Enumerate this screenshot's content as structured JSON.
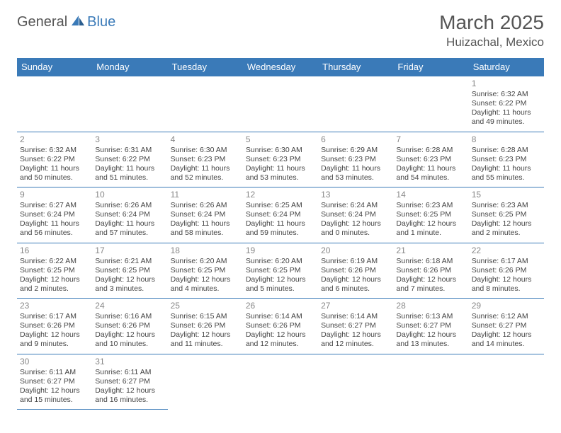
{
  "logo": {
    "general": "General",
    "blue": "Blue"
  },
  "title": {
    "month": "March 2025",
    "location": "Huizachal, Mexico"
  },
  "colors": {
    "brand_blue": "#3a7ab8",
    "text_dark": "#555555",
    "text_body": "#444444",
    "daynum": "#888888",
    "background": "#ffffff"
  },
  "calendar": {
    "columns": [
      "Sunday",
      "Monday",
      "Tuesday",
      "Wednesday",
      "Thursday",
      "Friday",
      "Saturday"
    ],
    "cell_fontsize": 10.5,
    "header_fontsize": 13,
    "border_color": "#3a7ab8",
    "weeks": [
      [
        null,
        null,
        null,
        null,
        null,
        null,
        {
          "n": "1",
          "sr": "Sunrise: 6:32 AM",
          "ss": "Sunset: 6:22 PM",
          "dl1": "Daylight: 11 hours",
          "dl2": "and 49 minutes."
        }
      ],
      [
        {
          "n": "2",
          "sr": "Sunrise: 6:32 AM",
          "ss": "Sunset: 6:22 PM",
          "dl1": "Daylight: 11 hours",
          "dl2": "and 50 minutes."
        },
        {
          "n": "3",
          "sr": "Sunrise: 6:31 AM",
          "ss": "Sunset: 6:22 PM",
          "dl1": "Daylight: 11 hours",
          "dl2": "and 51 minutes."
        },
        {
          "n": "4",
          "sr": "Sunrise: 6:30 AM",
          "ss": "Sunset: 6:23 PM",
          "dl1": "Daylight: 11 hours",
          "dl2": "and 52 minutes."
        },
        {
          "n": "5",
          "sr": "Sunrise: 6:30 AM",
          "ss": "Sunset: 6:23 PM",
          "dl1": "Daylight: 11 hours",
          "dl2": "and 53 minutes."
        },
        {
          "n": "6",
          "sr": "Sunrise: 6:29 AM",
          "ss": "Sunset: 6:23 PM",
          "dl1": "Daylight: 11 hours",
          "dl2": "and 53 minutes."
        },
        {
          "n": "7",
          "sr": "Sunrise: 6:28 AM",
          "ss": "Sunset: 6:23 PM",
          "dl1": "Daylight: 11 hours",
          "dl2": "and 54 minutes."
        },
        {
          "n": "8",
          "sr": "Sunrise: 6:28 AM",
          "ss": "Sunset: 6:23 PM",
          "dl1": "Daylight: 11 hours",
          "dl2": "and 55 minutes."
        }
      ],
      [
        {
          "n": "9",
          "sr": "Sunrise: 6:27 AM",
          "ss": "Sunset: 6:24 PM",
          "dl1": "Daylight: 11 hours",
          "dl2": "and 56 minutes."
        },
        {
          "n": "10",
          "sr": "Sunrise: 6:26 AM",
          "ss": "Sunset: 6:24 PM",
          "dl1": "Daylight: 11 hours",
          "dl2": "and 57 minutes."
        },
        {
          "n": "11",
          "sr": "Sunrise: 6:26 AM",
          "ss": "Sunset: 6:24 PM",
          "dl1": "Daylight: 11 hours",
          "dl2": "and 58 minutes."
        },
        {
          "n": "12",
          "sr": "Sunrise: 6:25 AM",
          "ss": "Sunset: 6:24 PM",
          "dl1": "Daylight: 11 hours",
          "dl2": "and 59 minutes."
        },
        {
          "n": "13",
          "sr": "Sunrise: 6:24 AM",
          "ss": "Sunset: 6:24 PM",
          "dl1": "Daylight: 12 hours",
          "dl2": "and 0 minutes."
        },
        {
          "n": "14",
          "sr": "Sunrise: 6:23 AM",
          "ss": "Sunset: 6:25 PM",
          "dl1": "Daylight: 12 hours",
          "dl2": "and 1 minute."
        },
        {
          "n": "15",
          "sr": "Sunrise: 6:23 AM",
          "ss": "Sunset: 6:25 PM",
          "dl1": "Daylight: 12 hours",
          "dl2": "and 2 minutes."
        }
      ],
      [
        {
          "n": "16",
          "sr": "Sunrise: 6:22 AM",
          "ss": "Sunset: 6:25 PM",
          "dl1": "Daylight: 12 hours",
          "dl2": "and 2 minutes."
        },
        {
          "n": "17",
          "sr": "Sunrise: 6:21 AM",
          "ss": "Sunset: 6:25 PM",
          "dl1": "Daylight: 12 hours",
          "dl2": "and 3 minutes."
        },
        {
          "n": "18",
          "sr": "Sunrise: 6:20 AM",
          "ss": "Sunset: 6:25 PM",
          "dl1": "Daylight: 12 hours",
          "dl2": "and 4 minutes."
        },
        {
          "n": "19",
          "sr": "Sunrise: 6:20 AM",
          "ss": "Sunset: 6:25 PM",
          "dl1": "Daylight: 12 hours",
          "dl2": "and 5 minutes."
        },
        {
          "n": "20",
          "sr": "Sunrise: 6:19 AM",
          "ss": "Sunset: 6:26 PM",
          "dl1": "Daylight: 12 hours",
          "dl2": "and 6 minutes."
        },
        {
          "n": "21",
          "sr": "Sunrise: 6:18 AM",
          "ss": "Sunset: 6:26 PM",
          "dl1": "Daylight: 12 hours",
          "dl2": "and 7 minutes."
        },
        {
          "n": "22",
          "sr": "Sunrise: 6:17 AM",
          "ss": "Sunset: 6:26 PM",
          "dl1": "Daylight: 12 hours",
          "dl2": "and 8 minutes."
        }
      ],
      [
        {
          "n": "23",
          "sr": "Sunrise: 6:17 AM",
          "ss": "Sunset: 6:26 PM",
          "dl1": "Daylight: 12 hours",
          "dl2": "and 9 minutes."
        },
        {
          "n": "24",
          "sr": "Sunrise: 6:16 AM",
          "ss": "Sunset: 6:26 PM",
          "dl1": "Daylight: 12 hours",
          "dl2": "and 10 minutes."
        },
        {
          "n": "25",
          "sr": "Sunrise: 6:15 AM",
          "ss": "Sunset: 6:26 PM",
          "dl1": "Daylight: 12 hours",
          "dl2": "and 11 minutes."
        },
        {
          "n": "26",
          "sr": "Sunrise: 6:14 AM",
          "ss": "Sunset: 6:26 PM",
          "dl1": "Daylight: 12 hours",
          "dl2": "and 12 minutes."
        },
        {
          "n": "27",
          "sr": "Sunrise: 6:14 AM",
          "ss": "Sunset: 6:27 PM",
          "dl1": "Daylight: 12 hours",
          "dl2": "and 12 minutes."
        },
        {
          "n": "28",
          "sr": "Sunrise: 6:13 AM",
          "ss": "Sunset: 6:27 PM",
          "dl1": "Daylight: 12 hours",
          "dl2": "and 13 minutes."
        },
        {
          "n": "29",
          "sr": "Sunrise: 6:12 AM",
          "ss": "Sunset: 6:27 PM",
          "dl1": "Daylight: 12 hours",
          "dl2": "and 14 minutes."
        }
      ],
      [
        {
          "n": "30",
          "sr": "Sunrise: 6:11 AM",
          "ss": "Sunset: 6:27 PM",
          "dl1": "Daylight: 12 hours",
          "dl2": "and 15 minutes."
        },
        {
          "n": "31",
          "sr": "Sunrise: 6:11 AM",
          "ss": "Sunset: 6:27 PM",
          "dl1": "Daylight: 12 hours",
          "dl2": "and 16 minutes."
        },
        null,
        null,
        null,
        null,
        null
      ]
    ]
  }
}
